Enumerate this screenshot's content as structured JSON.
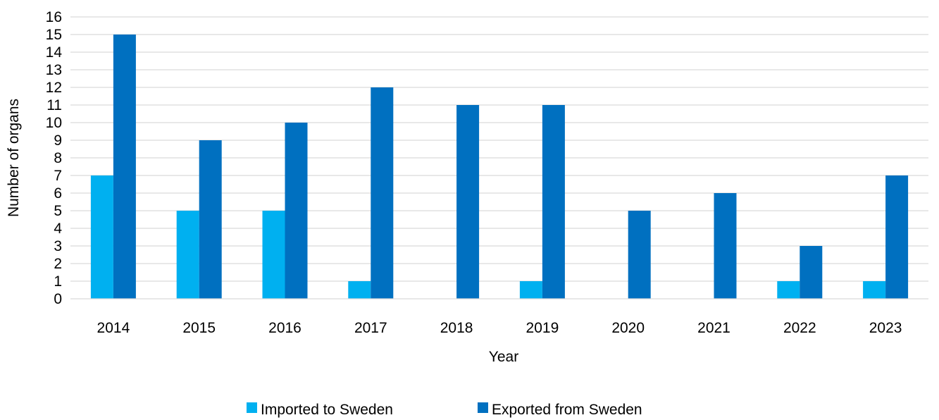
{
  "chart_data": {
    "type": "bar",
    "title": "",
    "xlabel": "Year",
    "ylabel": "Number of organs",
    "categories": [
      "2014",
      "2015",
      "2016",
      "2017",
      "2018",
      "2019",
      "2020",
      "2021",
      "2022",
      "2023"
    ],
    "series": [
      {
        "name": "Imported to Sweden",
        "color": "#00B0F0",
        "values": [
          7,
          5,
          5,
          1,
          0,
          1,
          0,
          0,
          1,
          1
        ]
      },
      {
        "name": "Exported from Sweden",
        "color": "#0070C0",
        "values": [
          15,
          9,
          10,
          12,
          11,
          11,
          5,
          6,
          3,
          7
        ]
      }
    ],
    "ylim": [
      0,
      16
    ],
    "yticks": [
      0,
      1,
      2,
      3,
      4,
      5,
      6,
      7,
      8,
      9,
      10,
      11,
      12,
      13,
      14,
      15,
      16
    ],
    "grid": true,
    "legend_position": "bottom"
  }
}
